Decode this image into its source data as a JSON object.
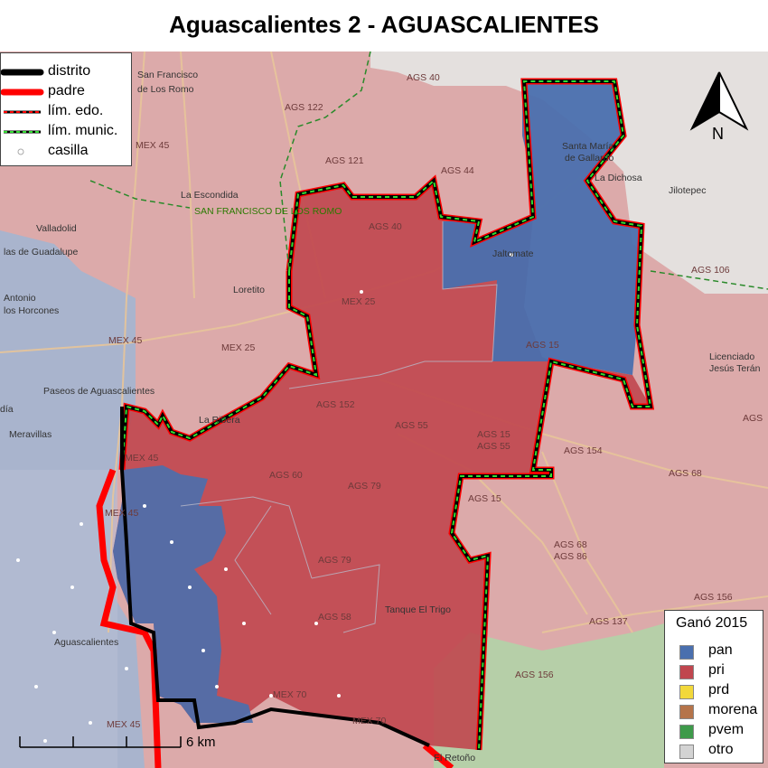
{
  "title": "Aguascalientes 2 - AGUASCALIENTES",
  "legend_lines": {
    "items": [
      {
        "label": "distrito",
        "color": "#000000"
      },
      {
        "label": "padre",
        "color": "#ff0000"
      },
      {
        "label": "lím. edo.",
        "color": "#000000",
        "dash": "#ff0000"
      },
      {
        "label": "lím. munic.",
        "color": "#000000",
        "dash": "#00cc00"
      },
      {
        "label": "casilla",
        "color": "#ffffff"
      }
    ]
  },
  "legend_parties": {
    "title": "Ganó 2015",
    "items": [
      {
        "label": "pan",
        "color": "#4a6fae"
      },
      {
        "label": "pri",
        "color": "#c0464e"
      },
      {
        "label": "prd",
        "color": "#f2d83a"
      },
      {
        "label": "morena",
        "color": "#b5744a"
      },
      {
        "label": "pvem",
        "color": "#3e9a4a"
      },
      {
        "label": "otro",
        "color": "#d3d3d3"
      }
    ]
  },
  "north_label": "N",
  "scale_bar": {
    "label": "6 km"
  },
  "road_labels": [
    "AGS 40",
    "AGS 122",
    "MEX 45",
    "AGS 121",
    "AGS 44",
    "AGS 40",
    "MEX 25",
    "AGS 106",
    "AGS 15",
    "MEX 45",
    "MEX 25",
    "AGS 152",
    "AGS 55",
    "AGS 15",
    "AGS 55",
    "AGS 154",
    "AGS 60",
    "AGS 79",
    "AGS 15",
    "AGS 68",
    "MEX 45",
    "MEX 45",
    "AGS 79",
    "AGS 68",
    "AGS 86",
    "AGS 58",
    "AGS 156",
    "AGS 137",
    "AGS 156",
    "MEX 70",
    "MEX 70",
    "MEX 45",
    "AGS"
  ],
  "place_labels": [
    "San Francisco",
    "de Los Romo",
    "Santa María",
    "de Gallardo",
    "La Dichosa",
    "Jilotepec",
    "La Escondida",
    "Valladolid",
    "las de Guadalupe",
    "Jaltomate",
    "Loretito",
    "Antonio",
    "los Horcones",
    "Licenciado",
    "Jesús Terán",
    "Paseos de Aguascalientes",
    "La Ribera",
    "día",
    "Meravillas",
    "Tanque El Trigo",
    "Aguascalientes",
    "El Retoño"
  ],
  "municipality_label": "SAN FRANCISCO DE LOS ROMO"
}
